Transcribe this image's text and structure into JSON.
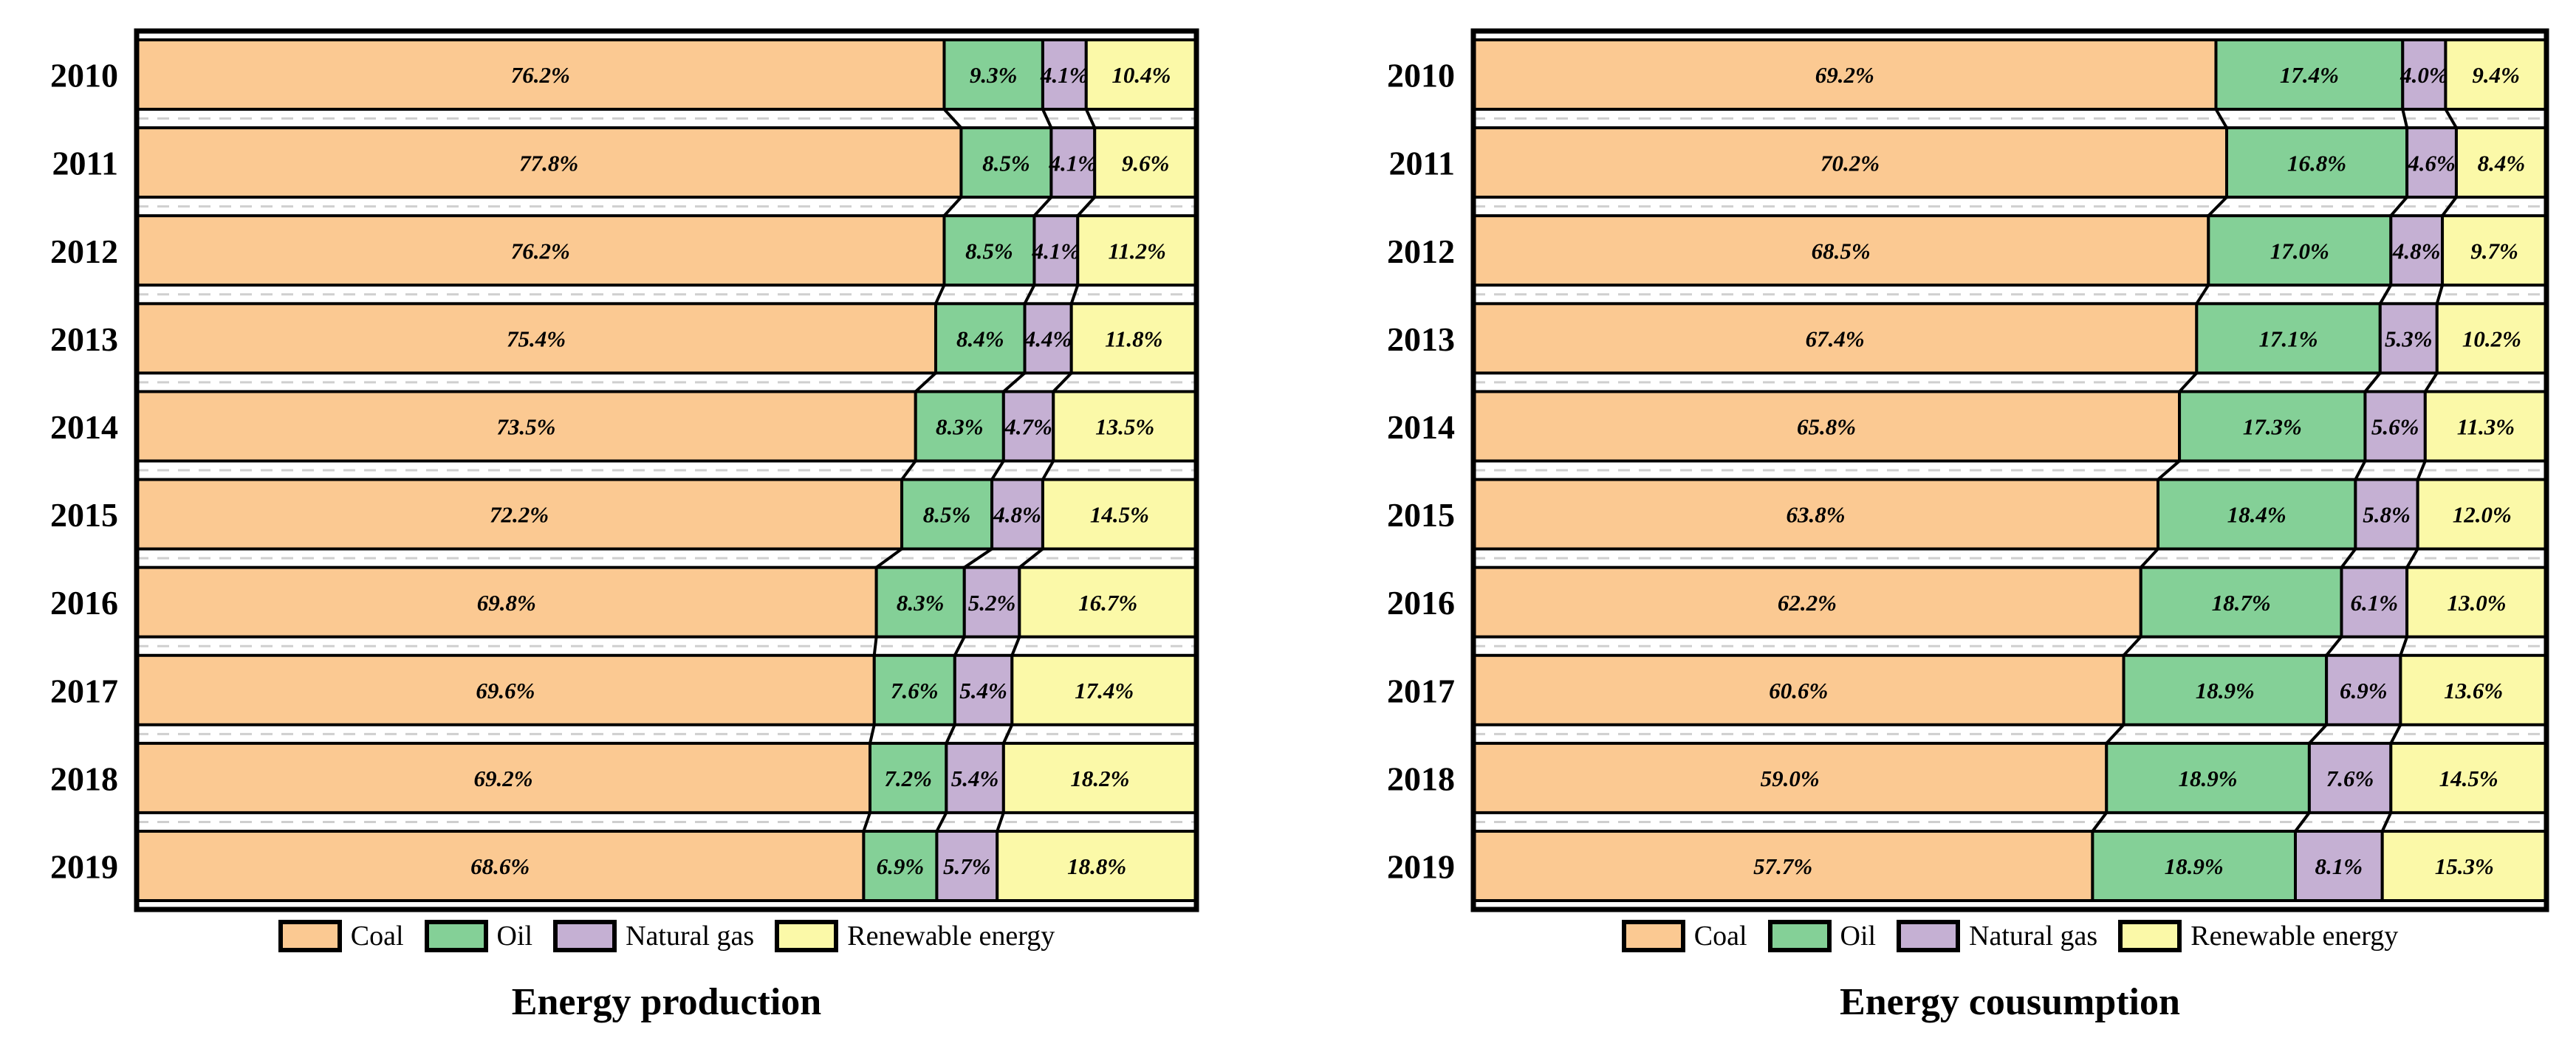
{
  "chart_data": [
    {
      "type": "bar",
      "orientation": "horizontal-stacked",
      "title": "Energy production",
      "categories": [
        "2010",
        "2011",
        "2012",
        "2013",
        "2014",
        "2015",
        "2016",
        "2017",
        "2018",
        "2019"
      ],
      "series": [
        {
          "name": "Coal",
          "color": "#FBC992",
          "values": [
            76.2,
            77.8,
            76.2,
            75.4,
            73.5,
            72.2,
            69.8,
            69.6,
            69.2,
            68.6
          ]
        },
        {
          "name": "Oil",
          "color": "#84D097",
          "values": [
            9.3,
            8.5,
            8.5,
            8.4,
            8.3,
            8.5,
            8.3,
            7.6,
            7.2,
            6.9
          ]
        },
        {
          "name": "Natural gas",
          "color": "#C5B0D3",
          "values": [
            4.1,
            4.1,
            4.1,
            4.4,
            4.7,
            4.8,
            5.2,
            5.4,
            5.4,
            5.7
          ]
        },
        {
          "name": "Renewable energy",
          "color": "#FBF9A8",
          "values": [
            10.4,
            9.6,
            11.2,
            11.8,
            13.5,
            14.5,
            16.7,
            17.4,
            18.2,
            18.8
          ]
        }
      ],
      "value_suffix": "%",
      "xlim": [
        0,
        100
      ],
      "legend_position": "bottom",
      "grid": "dashed-line-between-rows",
      "frame_color": "#000000",
      "gridline_color": "#CFCFCF"
    },
    {
      "type": "bar",
      "orientation": "horizontal-stacked",
      "title": "Energy cousumption",
      "categories": [
        "2010",
        "2011",
        "2012",
        "2013",
        "2014",
        "2015",
        "2016",
        "2017",
        "2018",
        "2019"
      ],
      "series": [
        {
          "name": "Coal",
          "color": "#FBC992",
          "values": [
            69.2,
            70.2,
            68.5,
            67.4,
            65.8,
            63.8,
            62.2,
            60.6,
            59.0,
            57.7
          ]
        },
        {
          "name": "Oil",
          "color": "#84D097",
          "values": [
            17.4,
            16.8,
            17.0,
            17.1,
            17.3,
            18.4,
            18.7,
            18.9,
            18.9,
            18.9
          ]
        },
        {
          "name": "Natural gas",
          "color": "#C5B0D3",
          "values": [
            4.0,
            4.6,
            4.8,
            5.3,
            5.6,
            5.8,
            6.1,
            6.9,
            7.6,
            8.1
          ]
        },
        {
          "name": "Renewable energy",
          "color": "#FBF9A8",
          "values": [
            9.4,
            8.4,
            9.7,
            10.2,
            11.3,
            12.0,
            13.0,
            13.6,
            14.5,
            15.3
          ]
        }
      ],
      "value_suffix": "%",
      "xlim": [
        0,
        100
      ],
      "legend_position": "bottom",
      "grid": "dashed-line-between-rows",
      "frame_color": "#000000",
      "gridline_color": "#CFCFCF"
    }
  ]
}
